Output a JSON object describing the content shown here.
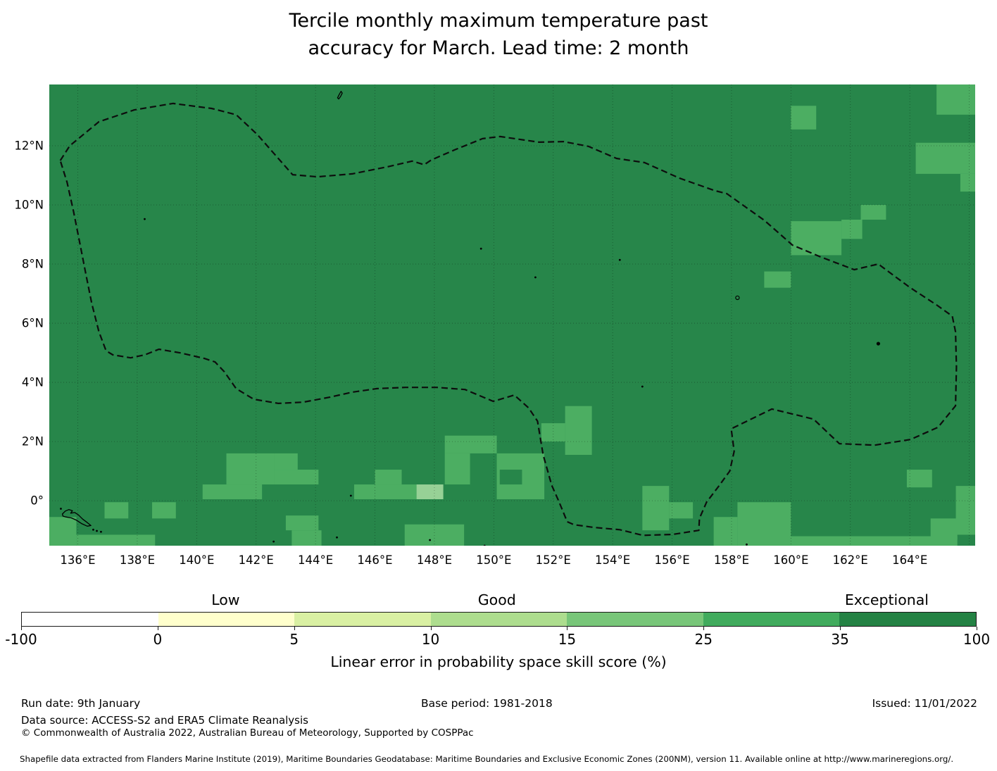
{
  "title": {
    "line1": "Tercile monthly maximum temperature past",
    "line2": "accuracy for March. Lead time: 2 month"
  },
  "chart_data": {
    "type": "heatmap",
    "title": "Tercile monthly maximum temperature past accuracy for March. Lead time: 2 month",
    "geo_extent": {
      "lon_min": 135.04,
      "lon_max": 166.2,
      "lat_min": -1.52,
      "lat_max": 14.07
    },
    "grid": true,
    "base_color": "#27864a",
    "level_colors": {
      "base": "#27864a",
      "m": "#4cae62",
      "l": "#97d196"
    },
    "level_meaning": {
      "base": "35-100 %",
      "m": "25-35 %",
      "l": "15-25 %"
    },
    "grid_lons": [
      136,
      138,
      140,
      142,
      144,
      146,
      148,
      150,
      152,
      154,
      156,
      158,
      160,
      162,
      164,
      166
    ],
    "grid_lats": [
      0,
      2,
      4,
      6,
      8,
      10,
      12
    ],
    "x_ticks": [
      {
        "label": "136°E",
        "lon": 136
      },
      {
        "label": "138°E",
        "lon": 138
      },
      {
        "label": "140°E",
        "lon": 140
      },
      {
        "label": "142°E",
        "lon": 142
      },
      {
        "label": "144°E",
        "lon": 144
      },
      {
        "label": "146°E",
        "lon": 146
      },
      {
        "label": "148°E",
        "lon": 148
      },
      {
        "label": "150°E",
        "lon": 150
      },
      {
        "label": "152°E",
        "lon": 152
      },
      {
        "label": "154°E",
        "lon": 154
      },
      {
        "label": "156°E",
        "lon": 156
      },
      {
        "label": "158°E",
        "lon": 158
      },
      {
        "label": "160°E",
        "lon": 160
      },
      {
        "label": "162°E",
        "lon": 162
      },
      {
        "label": "164°E",
        "lon": 164
      }
    ],
    "y_ticks": [
      {
        "label": "12°N",
        "lat": 12
      },
      {
        "label": "10°N",
        "lat": 10
      },
      {
        "label": "8°N",
        "lat": 8
      },
      {
        "label": "6°N",
        "lat": 6
      },
      {
        "label": "4°N",
        "lat": 4
      },
      {
        "label": "2°N",
        "lat": 2
      },
      {
        "label": "0°",
        "lat": 0
      }
    ],
    "cells": [
      [
        160.0,
        12.55,
        160.85,
        13.35,
        "m"
      ],
      [
        164.9,
        13.05,
        166.2,
        14.07,
        "m"
      ],
      [
        164.2,
        11.05,
        166.2,
        12.1,
        "m"
      ],
      [
        165.7,
        10.45,
        166.2,
        11.05,
        "m"
      ],
      [
        162.35,
        9.5,
        163.2,
        10.0,
        "m"
      ],
      [
        161.7,
        8.85,
        162.4,
        9.5,
        "m"
      ],
      [
        160.0,
        8.3,
        161.7,
        9.45,
        "m"
      ],
      [
        159.1,
        7.2,
        160.0,
        7.75,
        "m"
      ],
      [
        151.6,
        2.0,
        152.4,
        2.62,
        "m"
      ],
      [
        152.4,
        1.55,
        153.3,
        3.2,
        "m"
      ],
      [
        141.0,
        0.55,
        142.6,
        1.6,
        "m"
      ],
      [
        142.6,
        1.05,
        143.4,
        1.6,
        "m"
      ],
      [
        142.6,
        0.55,
        144.1,
        1.05,
        "m"
      ],
      [
        140.2,
        0.05,
        142.2,
        0.55,
        "m"
      ],
      [
        136.9,
        -0.6,
        137.7,
        -0.05,
        "m"
      ],
      [
        138.5,
        -0.6,
        139.3,
        -0.05,
        "m"
      ],
      [
        135.04,
        -1.52,
        135.95,
        -0.55,
        "m"
      ],
      [
        135.95,
        -1.52,
        138.6,
        -1.15,
        "m"
      ],
      [
        143.0,
        -1.0,
        144.1,
        -0.5,
        "m"
      ],
      [
        143.2,
        -1.52,
        144.2,
        -1.0,
        "m"
      ],
      [
        148.35,
        1.6,
        150.1,
        2.2,
        "m"
      ],
      [
        148.35,
        0.55,
        149.2,
        1.6,
        "m"
      ],
      [
        150.1,
        0.05,
        151.7,
        1.6,
        "m"
      ],
      [
        150.2,
        0.55,
        150.95,
        1.05,
        "base"
      ],
      [
        145.3,
        0.05,
        146.0,
        0.55,
        "m"
      ],
      [
        146.0,
        0.55,
        146.9,
        1.05,
        "m"
      ],
      [
        146.0,
        0.05,
        147.4,
        0.55,
        "m"
      ],
      [
        147.4,
        0.05,
        148.3,
        0.55,
        "l"
      ],
      [
        147.0,
        -1.52,
        149.0,
        -0.8,
        "m"
      ],
      [
        155.0,
        -1.0,
        155.9,
        0.5,
        "m"
      ],
      [
        155.9,
        -0.6,
        156.7,
        -0.05,
        "m"
      ],
      [
        157.4,
        -1.52,
        158.2,
        -0.55,
        "m"
      ],
      [
        158.2,
        -1.52,
        160.0,
        -0.05,
        "m"
      ],
      [
        163.9,
        0.45,
        164.75,
        1.05,
        "m"
      ],
      [
        164.7,
        -1.3,
        165.6,
        -0.6,
        "m"
      ],
      [
        165.55,
        -1.15,
        166.2,
        0.5,
        "m"
      ],
      [
        159.9,
        -1.52,
        165.6,
        -1.2,
        "m"
      ]
    ],
    "eez_boundary": [
      [
        135.41,
        11.5
      ],
      [
        135.73,
        12.0
      ],
      [
        136.71,
        12.81
      ],
      [
        137.9,
        13.21
      ],
      [
        139.2,
        13.43
      ],
      [
        140.5,
        13.26
      ],
      [
        141.33,
        13.05
      ],
      [
        142.04,
        12.38
      ],
      [
        142.87,
        11.43
      ],
      [
        143.23,
        11.02
      ],
      [
        144.06,
        10.95
      ],
      [
        145.24,
        11.05
      ],
      [
        146.43,
        11.29
      ],
      [
        147.25,
        11.48
      ],
      [
        147.66,
        11.36
      ],
      [
        147.9,
        11.52
      ],
      [
        148.68,
        11.86
      ],
      [
        149.62,
        12.24
      ],
      [
        150.21,
        12.31
      ],
      [
        151.52,
        12.12
      ],
      [
        152.35,
        12.14
      ],
      [
        153.18,
        11.98
      ],
      [
        154.13,
        11.57
      ],
      [
        155.07,
        11.43
      ],
      [
        156.26,
        10.9
      ],
      [
        157.44,
        10.48
      ],
      [
        157.84,
        10.38
      ],
      [
        159.1,
        9.48
      ],
      [
        160.05,
        8.64
      ],
      [
        161.0,
        8.24
      ],
      [
        162.13,
        7.81
      ],
      [
        162.94,
        8.0
      ],
      [
        164.0,
        7.21
      ],
      [
        164.9,
        6.62
      ],
      [
        165.43,
        6.24
      ],
      [
        165.54,
        5.71
      ],
      [
        165.57,
        4.52
      ],
      [
        165.54,
        3.21
      ],
      [
        164.95,
        2.48
      ],
      [
        164.02,
        2.07
      ],
      [
        162.82,
        1.88
      ],
      [
        161.63,
        1.93
      ],
      [
        160.76,
        2.76
      ],
      [
        159.36,
        3.1
      ],
      [
        157.99,
        2.43
      ],
      [
        158.09,
        1.67
      ],
      [
        157.94,
        1.0
      ],
      [
        157.56,
        0.48
      ],
      [
        157.16,
        -0.05
      ],
      [
        156.92,
        -0.6
      ],
      [
        156.9,
        -1.0
      ],
      [
        156.02,
        -1.14
      ],
      [
        155.02,
        -1.17
      ],
      [
        154.24,
        -0.98
      ],
      [
        153.36,
        -0.9
      ],
      [
        152.7,
        -0.81
      ],
      [
        152.47,
        -0.71
      ],
      [
        152.18,
        0.0
      ],
      [
        151.95,
        0.52
      ],
      [
        151.66,
        1.55
      ],
      [
        151.47,
        2.69
      ],
      [
        151.17,
        3.14
      ],
      [
        150.69,
        3.57
      ],
      [
        149.98,
        3.36
      ],
      [
        149.03,
        3.76
      ],
      [
        148.08,
        3.83
      ],
      [
        147.02,
        3.83
      ],
      [
        146.07,
        3.79
      ],
      [
        145.24,
        3.67
      ],
      [
        144.48,
        3.5
      ],
      [
        143.58,
        3.33
      ],
      [
        142.75,
        3.29
      ],
      [
        141.92,
        3.43
      ],
      [
        141.33,
        3.79
      ],
      [
        140.93,
        4.36
      ],
      [
        140.62,
        4.69
      ],
      [
        140.26,
        4.81
      ],
      [
        139.44,
        5.0
      ],
      [
        138.73,
        5.12
      ],
      [
        138.25,
        4.93
      ],
      [
        137.78,
        4.83
      ],
      [
        137.18,
        4.93
      ],
      [
        136.95,
        5.07
      ],
      [
        136.71,
        5.71
      ],
      [
        136.47,
        6.67
      ],
      [
        136.28,
        7.62
      ],
      [
        136.07,
        8.69
      ],
      [
        135.86,
        9.76
      ],
      [
        135.64,
        10.76
      ]
    ],
    "islands": [
      [
        [
          135.48,
          -0.45
        ],
        [
          135.58,
          -0.35
        ],
        [
          135.7,
          -0.3
        ],
        [
          135.82,
          -0.34
        ],
        [
          135.76,
          -0.42
        ],
        [
          135.9,
          -0.4
        ],
        [
          136.02,
          -0.48
        ],
        [
          136.16,
          -0.62
        ],
        [
          136.32,
          -0.74
        ],
        [
          136.44,
          -0.84
        ],
        [
          136.32,
          -0.86
        ],
        [
          136.14,
          -0.78
        ],
        [
          135.96,
          -0.66
        ],
        [
          135.78,
          -0.58
        ],
        [
          135.6,
          -0.55
        ],
        [
          135.5,
          -0.52
        ]
      ],
      [
        [
          144.74,
          13.62
        ],
        [
          144.8,
          13.74
        ],
        [
          144.86,
          13.84
        ],
        [
          144.9,
          13.78
        ],
        [
          144.84,
          13.66
        ],
        [
          144.78,
          13.58
        ]
      ]
    ],
    "island_specks": [
      [
        135.43,
        -0.27
      ],
      [
        136.52,
        -0.98
      ],
      [
        136.64,
        -1.02
      ],
      [
        136.78,
        -1.05
      ],
      [
        138.25,
        9.52
      ],
      [
        149.57,
        8.52
      ],
      [
        151.4,
        7.55
      ],
      [
        154.24,
        8.14
      ],
      [
        155.0,
        3.86
      ],
      [
        162.94,
        5.31
      ],
      [
        142.59,
        -1.38
      ],
      [
        144.72,
        -1.24
      ],
      [
        145.19,
        0.17
      ],
      [
        147.85,
        -1.33
      ],
      [
        149.69,
        -1.52
      ],
      [
        158.51,
        -1.48
      ]
    ],
    "island_rings": [
      {
        "lon": 158.2,
        "lat": 6.86,
        "r": 2.6
      },
      {
        "lon": 162.94,
        "lat": 5.31,
        "r": 2.0
      }
    ]
  },
  "colorbar": {
    "segments": [
      {
        "from": -100,
        "to": 0,
        "color": "#ffffff"
      },
      {
        "from": 0,
        "to": 5,
        "color": "#ffffcc"
      },
      {
        "from": 5,
        "to": 10,
        "color": "#d9f0a3"
      },
      {
        "from": 10,
        "to": 15,
        "color": "#addd8e"
      },
      {
        "from": 15,
        "to": 25,
        "color": "#78c679"
      },
      {
        "from": 25,
        "to": 35,
        "color": "#41ab5d"
      },
      {
        "from": 35,
        "to": 100,
        "color": "#248244"
      }
    ],
    "tick_labels": [
      "-100",
      "0",
      "5",
      "10",
      "15",
      "25",
      "35",
      "100"
    ],
    "categories": [
      {
        "label": "Low",
        "pos_pct": 21.4
      },
      {
        "label": "Good",
        "pos_pct": 49.8
      },
      {
        "label": "Exceptional",
        "pos_pct": 90.6
      }
    ],
    "axis_label": "Linear error in probability space skill score (%)"
  },
  "footer": {
    "run_date": "Run date: 9th January",
    "base_period": "Base period: 1981-2018",
    "issued": "Issued: 11/01/2022",
    "data_source": "Data source: ACCESS-S2 and ERA5 Climate Reanalysis",
    "copyright": "© Commonwealth of Australia 2022, Australian Bureau of Meteorology, Supported by COSPPac",
    "fine_print": "Shapefile data extracted from Flanders Marine Institute (2019), Maritime Boundaries Geodatabase: Maritime Boundaries and Exclusive Economic Zones (200NM), version 11. Available online at http://www.marineregions.org/."
  }
}
